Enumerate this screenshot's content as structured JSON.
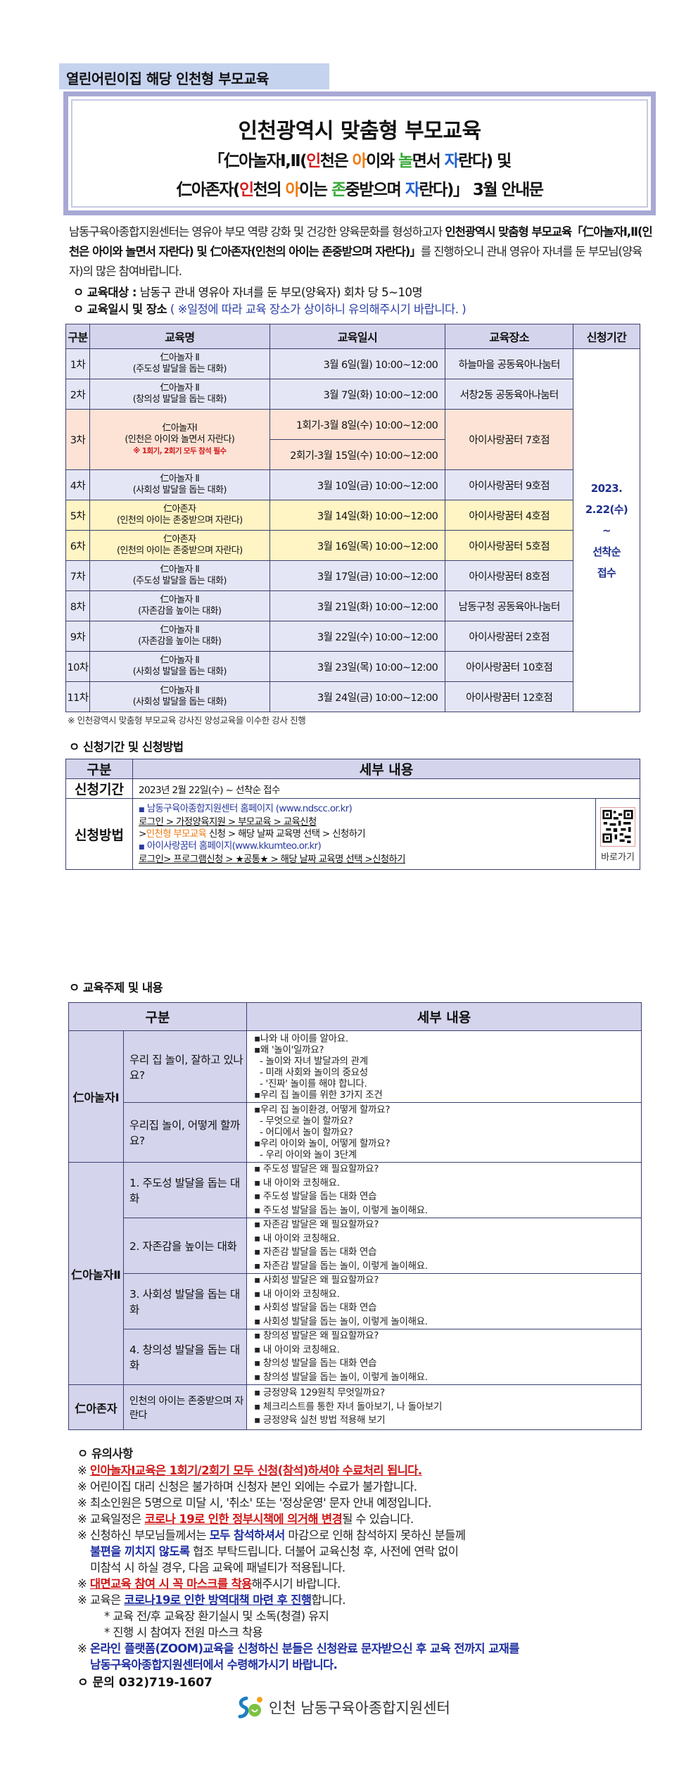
{
  "top_label": "열린어린이집 해당 인천형 부모교육",
  "title": {
    "line1": "인천광역시 맞춤형 부모교육",
    "line2": [
      "「仁아놀자Ⅰ,Ⅱ(",
      "인",
      "천은 ",
      "아",
      "이와 ",
      "놀",
      "면서 ",
      "자",
      "란다) 및"
    ],
    "line3": [
      "仁아존자(",
      "인",
      "천의 ",
      "아",
      "이는 ",
      "존",
      "중받으며 ",
      "자",
      "란다)」 3월 안내문"
    ]
  },
  "intro": {
    "p1": "남동구육아종합지원센터는 영유아 부모 역량 강화 및 건강한 양육문화를 형성하고자 ",
    "p2": "인천광역시 맞춤형 부모교육「仁아놀자Ⅰ,Ⅱ(인천은 아이와 놀면서 자란다) 및 仁아존자(인천의 아이는 존중받으며 자란다)」",
    "p3": "를 진행하오니 관내 영유아 자녀를 둔 부모님(양육자)의 많은 참여바랍니다."
  },
  "target": {
    "label": "ㅇ 교육대상 :",
    "value": " 남동구 관내 영유아 자녀를 둔 부모(양육자) 회차 당 5~10명"
  },
  "schedule_heading": {
    "label": "ㅇ 교육일시 및 장소",
    "note": " ( ※일정에 따라 교육 장소가 상이하니 유의해주시기 바랍니다. )"
  },
  "schedule": {
    "headers": [
      "구분",
      "교육명",
      "교육일시",
      "교육장소",
      "신청기간"
    ],
    "rows": [
      {
        "no": "1차",
        "name": "仁아놀자 Ⅱ",
        "sub": "(주도성 발달을 돕는 대화)",
        "date": "3월 6일(월)   10:00~12:00",
        "place": "하늘마을 공동육아나눔터"
      },
      {
        "no": "2차",
        "name": "仁아놀자 Ⅱ",
        "sub": "(창의성 발달을 돕는 대화)",
        "date": "3월 7일(화)   10:00~12:00",
        "place": "서창2동 공동육아나눔터"
      },
      {
        "no": "3차",
        "name": "仁아놀자Ⅰ",
        "sub": "(인천은 아이와 놀면서 자란다)",
        "must": "※ 1회기, 2회기 모두 참석 필수",
        "date": "1회기-3월 8일(수) 10:00~12:00",
        "date2": "2회기-3월 15일(수) 10:00~12:00",
        "place": "아이사랑꿈터 7호점"
      },
      {
        "no": "4차",
        "name": "仁아놀자 Ⅱ",
        "sub": "(사회성 발달을 돕는 대화)",
        "date": "3월 10일(금) 10:00~12:00",
        "place": "아이사랑꿈터 9호점"
      },
      {
        "no": "5차",
        "name": "仁아존자",
        "sub": "(인천의 아이는 존중받으며 자란다)",
        "date": "3월 14일(화) 10:00~12:00",
        "place": "아이사랑꿈터 4호점"
      },
      {
        "no": "6차",
        "name": "仁아존자",
        "sub": "(인천의 아이는 존중받으며 자란다)",
        "date": "3월 16일(목) 10:00~12:00",
        "place": "아이사랑꿈터 5호점"
      },
      {
        "no": "7차",
        "name": "仁아놀자 Ⅱ",
        "sub": "(주도성 발달을 돕는 대화)",
        "date": "3월 17일(금) 10:00~12:00",
        "place": "아이사랑꿈터 8호점"
      },
      {
        "no": "8차",
        "name": "仁아놀자 Ⅱ",
        "sub": "(자존감을 높이는 대화)",
        "date": "3월 21일(화) 10:00~12:00",
        "place": "남동구청 공동육아나눔터"
      },
      {
        "no": "9차",
        "name": "仁아놀자 Ⅱ",
        "sub": "(자존감을 높이는 대화)",
        "date": "3월 22일(수) 10:00~12:00",
        "place": "아이사랑꿈터 2호점"
      },
      {
        "no": "10차",
        "name": "仁아놀자 Ⅱ",
        "sub": "(사회성 발달을 돕는 대화)",
        "date": "3월 23일(목) 10:00~12:00",
        "place": "아이사랑꿈터 10호점"
      },
      {
        "no": "11차",
        "name": "仁아놀자 Ⅱ",
        "sub": "(사회성 발달을 돕는 대화)",
        "date": "3월 24일(금) 10:00~12:00",
        "place": "아이사랑꿈터 12호점"
      }
    ],
    "apply_period": [
      "2023.",
      "2.22(수)",
      "~",
      "선착순",
      "접수"
    ],
    "footnote": "※ 인천광역시 맞춤형 부모교육 강사진 양성교육을 이수한 강사 진행"
  },
  "application": {
    "heading": "ㅇ 신청기간 및 신청방법",
    "headers": [
      "구분",
      "세부 내용"
    ],
    "period_label": "신청기간",
    "period_value": "2023년 2월 22일(수) ~ 선착순 접수",
    "method_label": "신청방법",
    "site1": "남동구육아종합지원센터 홈페이지  (www.ndscc.or.kr)",
    "site1_path": "로그인 > 가정양육지원 > 부모교육 > 교육신청",
    "site1_path2a": ">",
    "site1_path2b": "인천형 부모교육",
    "site1_path2c": " 신청 > 해당 날짜 교육명 선택 > 신청하기",
    "site2": "아이사랑꿈터 홈페이지(www.kkumteo.or.kr)",
    "site2_path": "로그인> 프로그램신청 > ★공통★ > 해당 날짜 교육명 선택 >신청하기",
    "qr_label": "바로가기"
  },
  "topics": {
    "heading": "ㅇ 교육주제 및 내용",
    "headers": [
      "구분",
      "세부 내용"
    ],
    "groups": [
      {
        "name": "仁아놀자Ⅰ",
        "items": [
          {
            "title": "우리 집 놀이, 잘하고 있나요?",
            "details": [
              "▪나와 내 아이를 알아요.",
              "▪왜 '놀이'일까요?",
              "  - 놀이와 자녀 발달과의 관계",
              "  - 미래 사회와 놀이의 중요성",
              "  - '진짜' 놀이를 해야 합니다.",
              "▪우리 집 놀이를 위한 3가지 조건"
            ]
          },
          {
            "title": "우리집 놀이, 어떻게 할까요?",
            "details": [
              "▪우리 집 놀이환경, 어떻게 할까요?",
              "  - 무엇으로 놀이 할까요?",
              "  - 어디에서 놀이 할까요?",
              "▪우리 아이와 놀이, 어떻게 할까요?",
              "  - 우리 아이와 놀이 3단계"
            ]
          }
        ]
      },
      {
        "name": "仁아놀자Ⅱ",
        "items": [
          {
            "title": "1. 주도성 발달을 돕는 대화",
            "details": [
              "▪ 주도성 발달은 왜 필요할까요?",
              "▪ 내 아이와 코칭해요.",
              "▪ 주도성 발달을 돕는 대화 연습",
              "▪ 주도성 발달을 돕는 놀이, 이렇게 놀이해요."
            ]
          },
          {
            "title": "2. 자존감을 높이는 대화",
            "details": [
              "▪ 자존감 발달은 왜 필요할까요?",
              "▪ 내 아이와 코칭해요.",
              "▪ 자존감 발달을 돕는 대화 연습",
              "▪ 자존감 발달을 돕는 놀이, 이렇게 놀이해요."
            ]
          },
          {
            "title": "3. 사회성 발달을 돕는 대화",
            "details": [
              "▪ 사회성 발달은 왜 필요할까요?",
              "▪ 내 아이와 코칭해요.",
              "▪ 사회성 발달을 돕는 대화 연습",
              "▪ 사회성 발달을 돕는 놀이, 이렇게 놀이해요."
            ]
          },
          {
            "title": "4. 창의성 발달을 돕는 대화",
            "details": [
              "▪ 창의성 발달은 왜 필요할까요?",
              "▪ 내 아이와 코칭해요.",
              "▪ 창의성 발달을 돕는 대화 연습",
              "▪ 창의성 발달을 돕는 놀이, 이렇게 놀이해요."
            ]
          }
        ]
      },
      {
        "name": "仁아존자",
        "items": [
          {
            "title": "인천의 아이는 존중받으며 자란다",
            "details": [
              "▪ 긍정양육 129원칙 무엇일까요?",
              "▪ 체크리스트를 통한 자녀 돌아보기, 나 돌아보기",
              "▪ 긍정양육 실천 방법 적용해 보기"
            ]
          }
        ]
      }
    ]
  },
  "cautions": {
    "heading": "ㅇ 유의사항",
    "c1": "인아놀자Ⅰ교육은 1회기/2회기 모두 신청(참석)하셔야 수료처리 됩니다.",
    "c2": "어린이집 대리 신청은 불가하며 신청자 본인 외에는 수료가 불가합니다.",
    "c3": "최소인원은 5명으로 미달 시, '취소' 또는 '정상운영'  문자 안내 예정입니다.",
    "c4a": "교육일정은 ",
    "c4b": "코로나 19로 인한 정부시책에 의거해 변경",
    "c4c": "될 수 있습니다.",
    "c5a": "신청하신 부모님들께서는 ",
    "c5b": "모두 참석하셔서",
    "c5c": " 마감으로 인해 참석하지 못하신 분들께",
    "c5d": "불편을 끼치지 않도록",
    "c5e": " 협조 부탁드립니다. 더불어 교육신청 후, 사전에 연락 없이",
    "c5f": "미참석 시 하실 경우, 다음 교육에 패널티가 적용됩니다.",
    "c6a": "대면교육 참여 시 꼭 마스크를 착용",
    "c6b": "해주시기 바랍니다.",
    "c7a": "교육은 ",
    "c7b": "코로나19로 인한 방역대책 마련 후 진행",
    "c7c": "합니다.",
    "c7s1": "* 교육 전/후 교육장 환기실시 및 소독(청결) 유지",
    "c7s2": "* 진행 시 참여자 전원 마스크 착용",
    "c8a": "온라인 플랫폼(ZOOM)교육을 신청하신 분들은 신청완료 문자받으신 후 교육 전까지 교재를",
    "c8b": "남동구육아종합지원센터에서 수령해가시기 바랍니다.",
    "mark": "※"
  },
  "contact": "ㅇ 문의 032)719-1607",
  "logo_text": "인천 남동구육아종합지원센터",
  "colors": {
    "header_bg": "#d4d4ec",
    "row_bg": "#e5e6f5",
    "row_peach": "#fde3d6",
    "row_yellow": "#fff4c4",
    "label_bg": "#c6d3ef",
    "accent_red": "#d01818",
    "accent_blue": "#1f2fa0"
  }
}
